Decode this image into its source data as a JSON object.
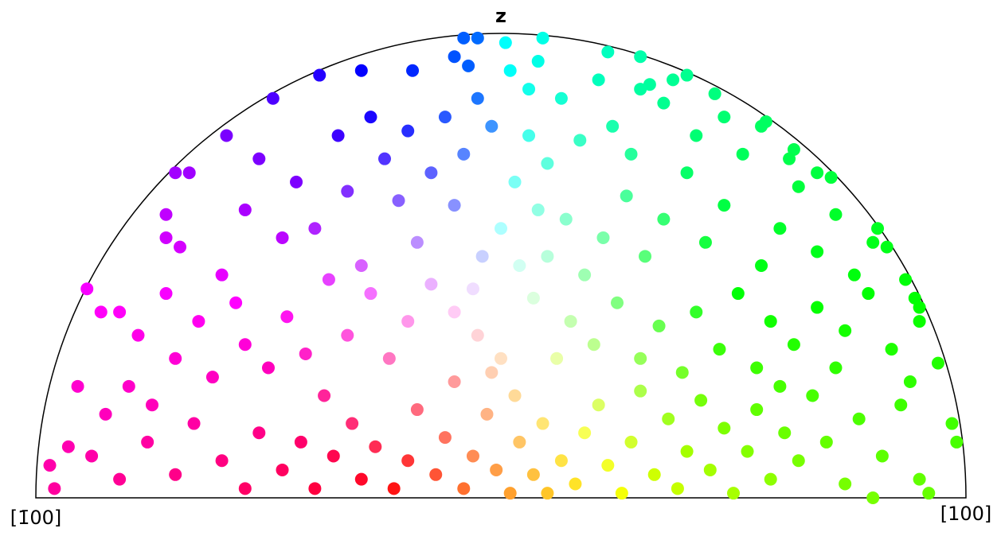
{
  "chart_data": {
    "type": "scatter",
    "title": "z",
    "annotations": [
      "[1̄00]",
      "[100]"
    ],
    "xlim": [
      -1,
      1
    ],
    "ylim": [
      0,
      1
    ],
    "color_by_position": true,
    "x": [
      -0.08,
      -0.05,
      0.01,
      0.09,
      0.08,
      -0.1,
      -0.07,
      0.23,
      0.3,
      0.4,
      0.37,
      0.32,
      0.46,
      0.57,
      0.63,
      0.71,
      0.81,
      0.83,
      0.87,
      0.89,
      0.9,
      0.9,
      0.94,
      0.97,
      0.98,
      0.92,
      0.9,
      0.8,
      0.74,
      -0.89,
      -0.86,
      -0.96,
      -0.97,
      -0.93,
      -0.91,
      -0.7,
      -0.67,
      -0.72,
      -0.69,
      -0.72,
      -0.59,
      -0.49,
      -0.39,
      -0.3,
      -0.19,
      -0.52,
      -0.44,
      -0.4,
      -0.47,
      -0.55,
      -0.35,
      -0.28,
      -0.33,
      -0.25,
      -0.2,
      -0.22,
      -0.15,
      -0.12,
      -0.08,
      -0.05,
      -0.02,
      -0.1,
      -0.18,
      -0.3,
      -0.37,
      -0.6,
      -0.82,
      -0.78,
      -0.72,
      -0.7,
      -0.65,
      -0.62,
      -0.57,
      -0.55,
      -0.5,
      -0.46,
      -0.42,
      -0.38,
      -0.8,
      -0.85,
      -0.75,
      -0.33,
      -0.28,
      -0.24,
      -0.2,
      -0.15,
      -0.1,
      -0.05,
      -0.88,
      -0.82,
      -0.76,
      -0.7,
      -0.66,
      -0.6,
      -0.55,
      -0.52,
      -0.47,
      -0.43,
      -0.4,
      -0.36,
      -0.32,
      -0.3,
      -0.27,
      -0.23,
      -0.2,
      -0.18,
      -0.14,
      -0.12,
      -0.08,
      -0.06,
      -0.03,
      -0.01,
      0.02,
      0.04,
      0.07,
      0.09,
      0.1,
      -0.1,
      -0.02,
      0.03,
      0.13,
      0.16,
      0.18,
      0.21,
      0.23,
      0.26,
      0.28,
      0.3,
      0.33,
      0.36,
      0.38,
      0.4,
      0.43,
      0.45,
      0.48,
      0.5,
      0.53,
      0.55,
      0.58,
      0.61,
      0.64,
      0.67,
      0.7,
      0.72,
      0.77,
      0.82,
      0.86,
      0.12,
      0.15,
      0.2,
      0.25,
      0.3,
      0.34,
      0.39,
      0.42,
      0.47,
      0.51,
      0.55,
      0.58,
      0.63,
      0.68,
      0.74,
      0.79,
      0.84,
      0.88,
      0.6,
      0.1,
      0.14,
      0.18,
      0.22,
      0.27,
      0.31,
      0.35,
      0.4,
      0.44,
      0.48,
      0.52,
      0.56,
      0.6,
      0.64,
      0.68,
      0.72,
      0.76,
      0.8,
      0.56,
      0.48,
      0.42,
      0.35,
      0.62,
      0.68,
      0.03,
      0.06,
      0.1,
      0.13,
      0.17,
      0.21,
      0.24,
      0.28,
      0.3,
      0.06,
      0.02,
      0.08,
      0.0,
      0.04,
      -0.04,
      0.07,
      0.0,
      -0.06
    ],
    "y": [
      0.99,
      0.99,
      0.98,
      0.99,
      0.94,
      0.95,
      0.93,
      0.96,
      0.95,
      0.91,
      0.9,
      0.89,
      0.87,
      0.81,
      0.75,
      0.69,
      0.58,
      0.54,
      0.47,
      0.43,
      0.41,
      0.38,
      0.29,
      0.16,
      0.12,
      0.01,
      0.04,
      0.0,
      0.03,
      0.45,
      0.4,
      0.02,
      0.07,
      0.11,
      0.24,
      0.7,
      0.7,
      0.61,
      0.54,
      0.56,
      0.78,
      0.86,
      0.91,
      0.92,
      0.92,
      0.73,
      0.68,
      0.58,
      0.56,
      0.62,
      0.78,
      0.82,
      0.66,
      0.73,
      0.79,
      0.64,
      0.7,
      0.82,
      0.74,
      0.86,
      0.8,
      0.63,
      0.55,
      0.5,
      0.47,
      0.48,
      0.4,
      0.35,
      0.44,
      0.3,
      0.38,
      0.26,
      0.42,
      0.33,
      0.28,
      0.39,
      0.31,
      0.22,
      0.24,
      0.18,
      0.2,
      0.35,
      0.44,
      0.3,
      0.38,
      0.46,
      0.4,
      0.35,
      0.09,
      0.04,
      0.12,
      0.05,
      0.16,
      0.08,
      0.02,
      0.14,
      0.06,
      0.12,
      0.02,
      0.09,
      0.16,
      0.04,
      0.11,
      0.02,
      0.08,
      0.19,
      0.05,
      0.13,
      0.02,
      0.09,
      0.18,
      0.06,
      0.01,
      0.12,
      0.05,
      0.16,
      0.01,
      0.25,
      0.27,
      0.22,
      0.08,
      0.03,
      0.14,
      0.2,
      0.07,
      0.01,
      0.12,
      0.23,
      0.05,
      0.17,
      0.02,
      0.1,
      0.21,
      0.06,
      0.15,
      0.01,
      0.1,
      0.19,
      0.04,
      0.14,
      0.08,
      0.22,
      0.12,
      0.28,
      0.17,
      0.09,
      0.2,
      0.3,
      0.38,
      0.33,
      0.42,
      0.3,
      0.37,
      0.27,
      0.4,
      0.32,
      0.44,
      0.28,
      0.38,
      0.33,
      0.41,
      0.36,
      0.44,
      0.32,
      0.25,
      0.24,
      0.52,
      0.6,
      0.48,
      0.56,
      0.65,
      0.52,
      0.6,
      0.7,
      0.55,
      0.63,
      0.74,
      0.5,
      0.58,
      0.67,
      0.53,
      0.61,
      0.48,
      0.55,
      0.8,
      0.82,
      0.78,
      0.85,
      0.73,
      0.7,
      0.68,
      0.78,
      0.72,
      0.86,
      0.77,
      0.9,
      0.8,
      0.74,
      0.88,
      0.88,
      0.92,
      0.62,
      0.58,
      0.5,
      0.52,
      0.43,
      0.3,
      0.45
    ]
  }
}
